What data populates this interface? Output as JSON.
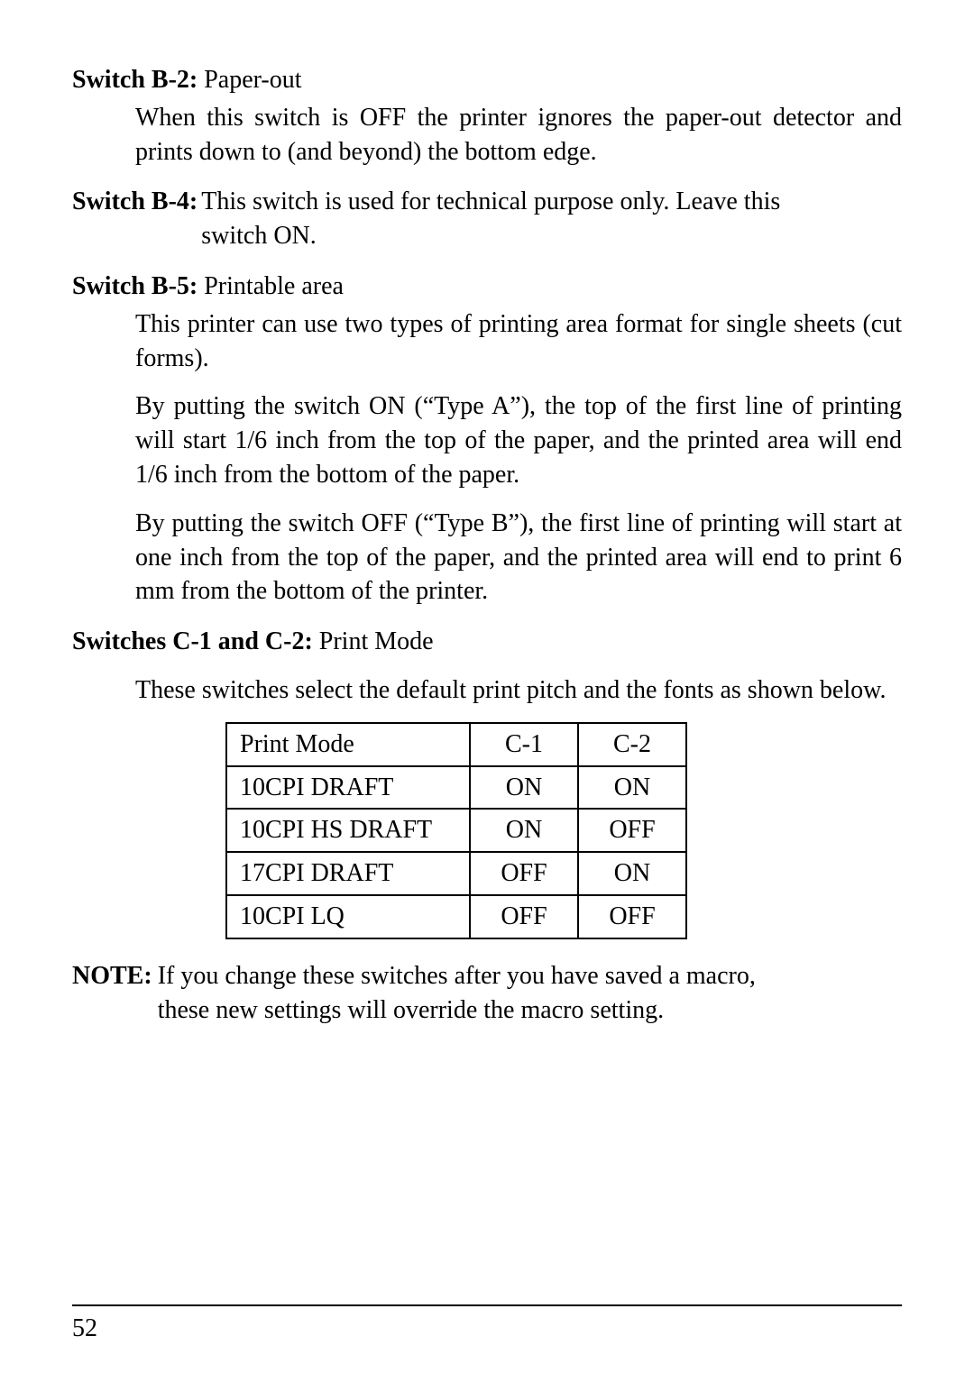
{
  "b2": {
    "label": "Switch B-2:",
    "title": "Paper-out",
    "body": "When this switch is OFF the printer ignores the paper-out detector and prints down to (and beyond) the bottom edge."
  },
  "b4": {
    "label": "Switch B-4:",
    "body1": "This switch is used for technical purpose only. Leave this",
    "body2": "switch ON."
  },
  "b5": {
    "label": "Switch B-5:",
    "title": "Printable area",
    "p1": "This printer can use two types of printing area format for single sheets (cut forms).",
    "p2": "By putting the switch ON (“Type A”), the top of the first line of printing will start 1/6 inch from the top of the paper, and the printed area will end 1/6 inch from the bottom of the paper.",
    "p3": "By putting the switch OFF (“Type B”), the first line of printing will start at one inch from the top of the paper, and the printed area will end to print 6 mm from the bottom of the printer."
  },
  "c12": {
    "label": "Switches C-1 and C-2:",
    "title": "Print Mode",
    "intro": "These switches select the default print pitch and the fonts as shown below."
  },
  "table": {
    "h_mode": "Print Mode",
    "h_c1": "C-1",
    "h_c2": "C-2",
    "rows": [
      {
        "mode": "10CPI DRAFT",
        "c1": "ON",
        "c2": "ON"
      },
      {
        "mode": "10CPI HS DRAFT",
        "c1": "ON",
        "c2": "OFF"
      },
      {
        "mode": "17CPI DRAFT",
        "c1": "OFF",
        "c2": "ON"
      },
      {
        "mode": "10CPI LQ",
        "c1": "OFF",
        "c2": "OFF"
      }
    ]
  },
  "note": {
    "label": "NOTE:",
    "line1": "If you change these switches after you have saved a macro,",
    "line2": "these new settings will override the macro setting."
  },
  "page_number": "52"
}
